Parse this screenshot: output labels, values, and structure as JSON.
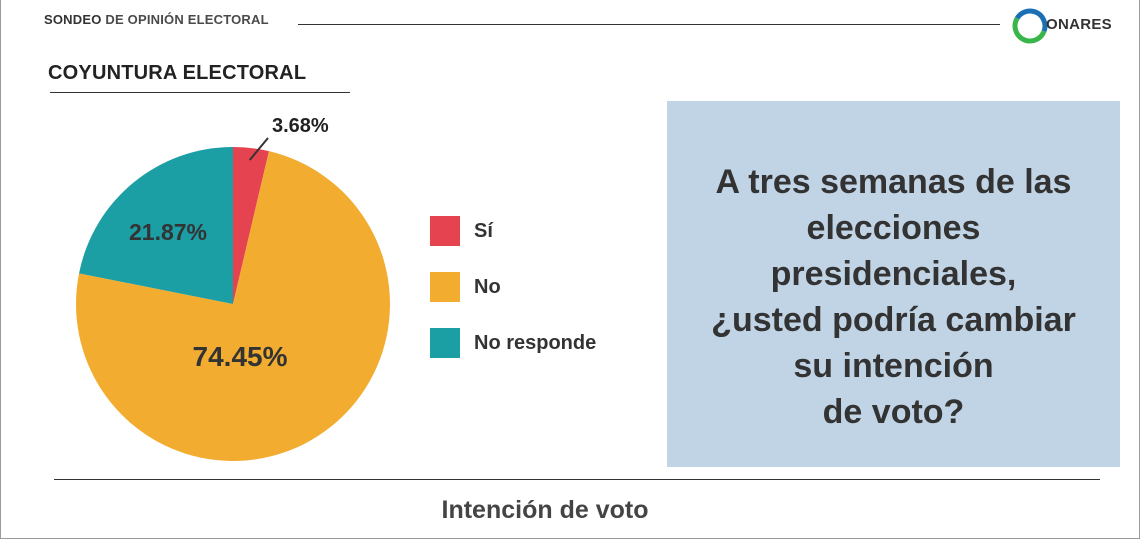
{
  "header": {
    "part1": "SONDEO",
    "part2": "DE OPINIÓN ELECTORAL",
    "logo_letter": "C",
    "logo_text": "ONARES"
  },
  "section_title": "COYUNTURA ELECTORAL",
  "question": "A tres semanas de las elecciones presidenciales, ¿usted podría cambiar su intención de voto?",
  "question_lines": [
    "A tres semanas de las",
    "elecciones",
    "presidenciales,",
    "¿usted podría cambiar",
    "su intención",
    "de voto?"
  ],
  "footer": "Intención de voto",
  "colors": {
    "si": "#e4434f",
    "no": "#f2ad30",
    "no_responde": "#1c9ea5",
    "box": "#c1d4e6",
    "logo_green": "#39b54a",
    "logo_blue": "#1a6fb5"
  },
  "chart_data": {
    "type": "pie",
    "labels": [
      "Sí",
      "No",
      "No responde"
    ],
    "values": [
      3.68,
      74.45,
      21.87
    ],
    "data_labels": [
      "3.68%",
      "74.45%",
      "21.87%"
    ],
    "legend_position": "right"
  }
}
